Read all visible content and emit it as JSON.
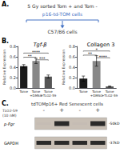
{
  "chart_data": [
    {
      "type": "bar",
      "title": "Tgf-β",
      "ylabel": "Relative Expression",
      "categories": [
        "Tome",
        "Tome\n+DMSO",
        "Tome\n+TLO2-59"
      ],
      "values": [
        0.42,
        0.52,
        0.22
      ],
      "errors": [
        0.03,
        0.05,
        0.03
      ],
      "colors": [
        "#1a1a1a",
        "#888888",
        "#555555"
      ],
      "ylim": [
        0,
        0.8
      ],
      "yticks": [
        {
          "value": 0,
          "label": "0.0"
        },
        0.2,
        0.4,
        0.6,
        0.8
      ],
      "grid": false,
      "significance": [
        {
          "text": "**",
          "from": 0,
          "to": 1,
          "y": 0.58
        },
        {
          "text": "****",
          "from": 0,
          "to": 2,
          "y": 0.66
        },
        {
          "text": "***",
          "from": 1,
          "to": 2,
          "y": 0.53
        }
      ]
    },
    {
      "type": "bar",
      "title": "Collagen 3",
      "ylabel": "Relative Expression",
      "categories": [
        "Tome",
        "Tome\n+DMSO",
        "Tome\n+TLO2-59"
      ],
      "values": [
        0.18,
        0.52,
        0.03
      ],
      "errors": [
        0.05,
        0.1,
        0.01
      ],
      "colors": [
        "#1a1a1a",
        "#888888",
        "#555555"
      ],
      "ylim": [
        0,
        0.8
      ],
      "yticks": [
        {
          "value": 0,
          "label": "0.0"
        },
        0.2,
        0.4,
        0.6,
        0.8
      ],
      "grid": false,
      "significance": [
        {
          "text": "**",
          "from": 0,
          "to": 1,
          "y": 0.62
        },
        {
          "text": "*",
          "from": 0,
          "to": 2,
          "y": 0.7
        },
        {
          "text": "****",
          "from": 1,
          "to": 2,
          "y": 0.57
        }
      ]
    }
  ],
  "annotations": {
    "panel_A": {
      "label": "A.",
      "line1": "5 Gy sorted Tom + and Tom -",
      "line2": "p16-td-TOM cells",
      "line3": "C57/B6 cells",
      "color": "#4472C4"
    },
    "panel_B": {
      "label": "B."
    },
    "panel_C": {
      "label": "C.",
      "title": "tdTOMp16+ Red Senescent cells",
      "treatment_label": "TLO2-59\n(10 nM)",
      "lanes": [
        "-",
        "+",
        "-",
        "+"
      ],
      "bands": [
        {
          "label": "p-Fgr",
          "size": "-50kD"
        },
        {
          "label": "GAPDH",
          "size": "-37kD"
        }
      ]
    }
  }
}
